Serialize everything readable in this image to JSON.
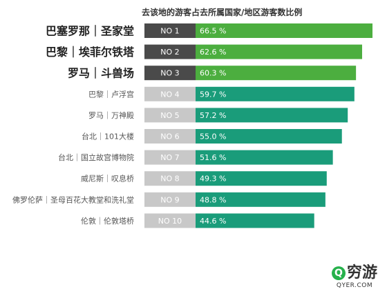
{
  "chart_data": {
    "type": "bar",
    "orientation": "horizontal",
    "title": "去该地的游客占去所属国家/地区游客数比例",
    "categories": [
      "巴塞罗那｜圣家堂",
      "巴黎｜埃菲尔铁塔",
      "罗马｜斗兽场",
      "巴黎｜卢浮宫",
      "罗马｜万神殿",
      "台北｜101大楼",
      "台北｜国立故宫博物院",
      "威尼斯｜叹息桥",
      "佛罗伦萨｜圣母百花大教堂和洗礼堂",
      "伦敦｜伦敦塔桥"
    ],
    "ranks": [
      "NO 1",
      "NO 2",
      "NO 3",
      "NO 4",
      "NO 5",
      "NO 6",
      "NO 7",
      "NO 8",
      "NO 9",
      "NO 10"
    ],
    "values": [
      66.5,
      62.6,
      60.3,
      59.7,
      57.2,
      55.0,
      51.6,
      49.3,
      48.8,
      44.6
    ],
    "value_labels": [
      "66.5 %",
      "62.6 %",
      "60.3 %",
      "59.7 %",
      "57.2 %",
      "55.0 %",
      "51.6 %",
      "49.3 %",
      "48.8 %",
      "44.6 %"
    ],
    "highlight_top": 3,
    "colors": {
      "top_bar": "#4cae3f",
      "bar": "#1a9c7a",
      "top_rank": "#4a4a4a",
      "rank": "#c8c8c8",
      "top_label": "#222222",
      "label": "#555555"
    }
  },
  "logo": {
    "icon": "Q",
    "name": "穷游",
    "sub": "QYER.COM"
  }
}
